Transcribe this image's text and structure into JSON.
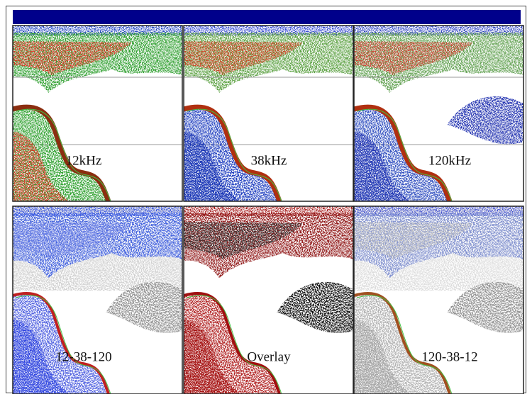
{
  "panels": [
    {
      "label": "12kHz"
    },
    {
      "label": "38kHz"
    },
    {
      "label": "120kHz"
    },
    {
      "label": "12-38-120"
    },
    {
      "label": "Overlay"
    },
    {
      "label": "120-38-12"
    }
  ]
}
